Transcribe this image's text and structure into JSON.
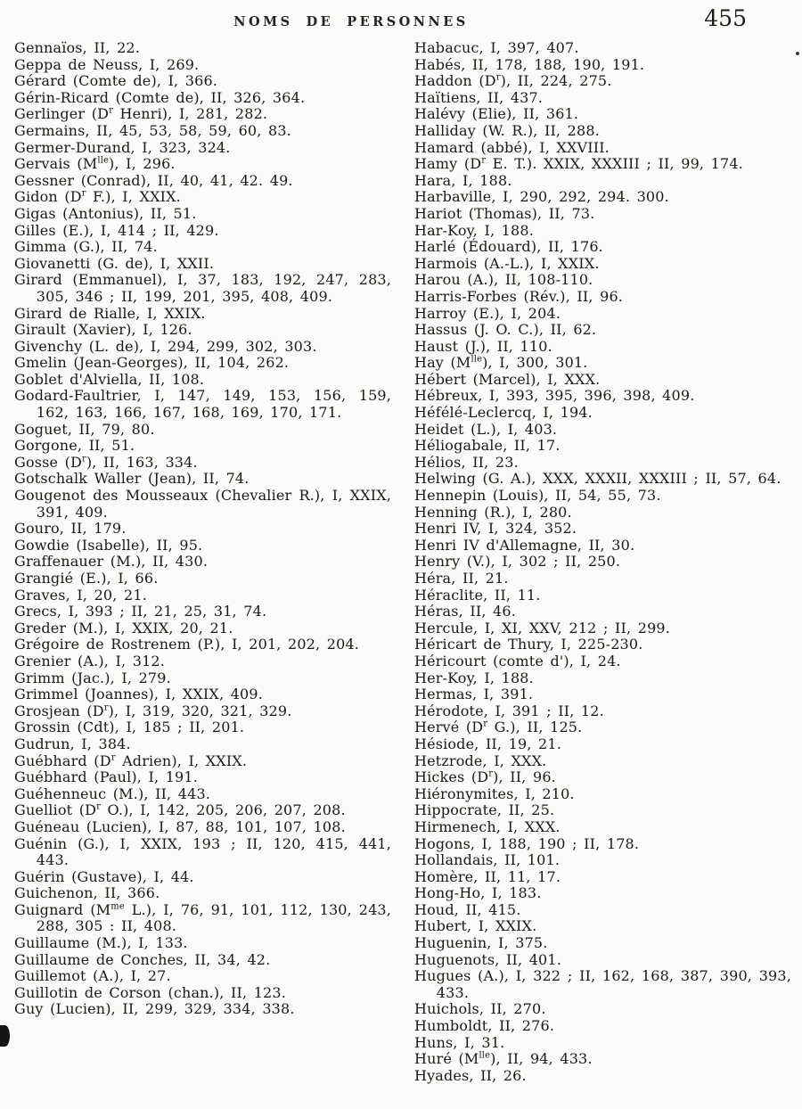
{
  "page": {
    "header": {
      "title": "NOMS DE PERSONNES",
      "page_number": "455"
    }
  },
  "index": {
    "left_column": [
      "Gennaïos, II, 22.",
      "Geppa de Neuss, I, 269.",
      "Gérard (Comte de), I, 366.",
      "Gérin-Ricard (Comte de), II, 326, 364.",
      "Gerlinger (D^{r} Henri), I, 281, 282.",
      "Germains, II, 45, 53, 58, 59, 60, 83.",
      "Germer-Durand, I, 323, 324.",
      "Gervais (M^{lle}), I, 296.",
      "Gessner (Conrad), II, 40, 41, 42. 49.",
      "Gidon (D^{r} F.), I, XXIX.",
      "Gigas (Antonius), II, 51.",
      "Gilles (E.), I, 414 ; II, 429.",
      "Gimma (G.), II, 74.",
      "Giovanetti (G. de), I, XXII.",
      "Girard (Emmanuel), I, 37, 183, 192, 247, 283, 305, 346 ; II, 199, 201, 395, 408, 409.",
      "Girard de Rialle, I, XXIX.",
      "Girault (Xavier), I, 126.",
      "Givenchy (L. de), I, 294, 299, 302, 303.",
      "Gmelin (Jean-Georges), II, 104, 262.",
      "Goblet d'Alviella, II, 108.",
      "Godard-Faultrier, I, 147, 149, 153, 156, 159, 162, 163, 166, 167, 168, 169, 170, 171.",
      "Goguet, II, 79, 80.",
      "Gorgone, II, 51.",
      "Gosse (D^{r}), II, 163, 334.",
      "Gotschalk Waller (Jean), II, 74.",
      "Gougenot des Mousseaux (Chevalier R.), I, XXIX, 391, 409.",
      "Gouro, II, 179.",
      "Gowdie (Isabelle), II, 95.",
      "Graffenauer (M.), II, 430.",
      "Grangié (E.), I, 66.",
      "Graves, I, 20, 21.",
      "Grecs, I, 393 ; II, 21, 25, 31, 74.",
      "Greder (M.), I, XXIX, 20, 21.",
      "Grégoire de Rostrenem (P.), I, 201, 202, 204.",
      "Grenier (A.), I, 312.",
      "Grimm (Jac.), I, 279.",
      "Grimmel (Joannes), I, XXIX, 409.",
      "Grosjean (D^{r}), I, 319, 320, 321, 329.",
      "Grossin (Cdt), I, 185 ; II, 201.",
      "Gudrun, I, 384.",
      "Guébhard (D^{r} Adrien), I, XXIX.",
      "Guébhard (Paul), I, 191.",
      "Guéhenneuc (M.), II, 443.",
      "Guelliot (D^{r} O.), I, 142, 205, 206, 207, 208.",
      "Guéneau (Lucien), I, 87, 88, 101, 107, 108.",
      "Guénin (G.), I, XXIX, 193 ; II, 120, 415, 441, 443.",
      "Guérin (Gustave), I, 44.",
      "Guichenon, II, 366.",
      "Guignard (M^{me} L.), I, 76, 91, 101, 112, 130, 243, 288, 305 : II, 408.",
      "Guillaume (M.), I, 133.",
      "Guillaume de Conches, II, 34, 42.",
      "Guillemot (A.), I, 27.",
      "Guillotin de Corson (chan.), II, 123.",
      "Guy (Lucien), II, 299, 329, 334, 338."
    ],
    "right_column": [
      "Habacuc, I, 397, 407.",
      "Habés, II, 178, 188, 190, 191.",
      "Haddon (D^{r}), II, 224, 275.",
      "Haïtiens, II, 437.",
      "Halévy (Elie), II, 361.",
      "Halliday (W. R.), II, 288.",
      "Hamard (abbé), I, XXVIII.",
      "Hamy (D^{r} E. T.). XXIX, XXXIII ; II, 99, 174.",
      "Hara, I, 188.",
      "Harbaville, I, 290, 292, 294. 300.",
      "Hariot (Thomas), II, 73.",
      "Har-Koy, I, 188.",
      "Harlé (Édouard), II, 176.",
      "Harmois (A.-L.), I, XXIX.",
      "Harou (A.), II, 108-110.",
      "Harris-Forbes (Rév.), II, 96.",
      "Harroy (E.), I, 204.",
      "Hassus (J. O. C.), II, 62.",
      "Haust (J.), II, 110.",
      "Hay (M^{lle}), I, 300, 301.",
      "Hébert (Marcel), I, XXX.",
      "Hébreux, I, 393, 395, 396, 398, 409.",
      "Héfélé-Leclercq, I, 194.",
      "Heidet (L.), I, 403.",
      "Héliogabale, II, 17.",
      "Hélios, II, 23.",
      "Helwing (G. A.), XXX, XXXII, XXXIII ; II, 57, 64.",
      "Hennepin (Louis), II, 54, 55, 73.",
      "Henning (R.), I, 280.",
      "Henri IV, I, 324, 352.",
      "Henri IV d'Allemagne, II, 30.",
      "Henry (V.), I, 302 ; II, 250.",
      "Héra, II, 21.",
      "Héraclite, II, 11.",
      "Héras, II, 46.",
      "Hercule, I, XI, XXV, 212 ; II, 299.",
      "Héricart de Thury, I, 225-230.",
      "Héricourt (comte d'), I, 24.",
      "Her-Koy, I, 188.",
      "Hermas, I, 391.",
      "Hérodote, I, 391 ; II, 12.",
      "Hervé (D^{r} G.), II, 125.",
      "Hésiode, II, 19, 21.",
      "Hetzrode, I, XXX.",
      "Hickes (D^{r}), II, 96.",
      "Hiéronymites, I, 210.",
      "Hippocrate, II, 25.",
      "Hirmenech, I, XXX.",
      "Hogons, I, 188, 190 ; II, 178.",
      "Hollandais, II, 101.",
      "Homère, II, 11, 17.",
      "Hong-Ho, I, 183.",
      "Houd, II, 415.",
      "Hubert, I, XXIX.",
      "Huguenin, I, 375.",
      "Huguenots, II, 401.",
      "Hugues (A.), I, 322 ; II, 162, 168, 387, 390, 393, 433.",
      "Huichols, II, 270.",
      "Humboldt, II, 276.",
      "Huns, I, 31.",
      "Huré (M^{lle}), II, 94, 433.",
      "Hyades, II, 26."
    ]
  }
}
